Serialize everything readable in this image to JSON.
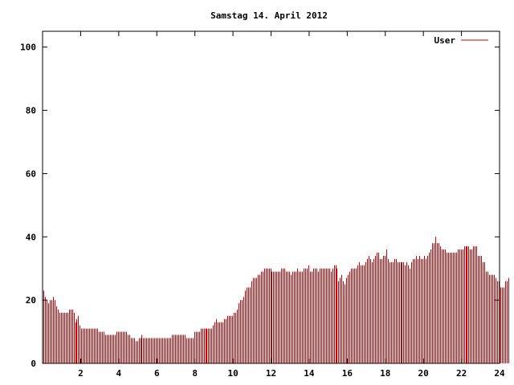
{
  "chart_data": {
    "type": "bar",
    "title": "Samstag 14. April 2012",
    "xlabel": "",
    "ylabel": "",
    "xlim": [
      0,
      24
    ],
    "ylim": [
      0,
      105
    ],
    "x_ticks": [
      "2",
      "4",
      "6",
      "8",
      "10",
      "12",
      "14",
      "16",
      "18",
      "20",
      "22",
      "24"
    ],
    "y_ticks": [
      "0",
      "20",
      "40",
      "60",
      "80",
      "100"
    ],
    "grid": false,
    "legend": {
      "position": "top-right"
    },
    "series": [
      {
        "name": "User",
        "color": "#cc0000",
        "interval_minutes": 5,
        "start_hour": 0,
        "values": [
          23,
          21,
          20,
          19,
          20,
          20,
          21,
          20,
          18,
          17,
          16,
          16,
          16,
          16,
          16,
          16,
          17,
          17,
          17,
          16,
          13,
          14,
          15,
          12,
          11,
          11,
          11,
          11,
          11,
          11,
          11,
          11,
          11,
          11,
          11,
          10,
          10,
          10,
          10,
          9,
          9,
          9,
          9,
          9,
          9,
          9,
          10,
          10,
          10,
          10,
          10,
          10,
          10,
          9,
          9,
          8,
          8,
          8,
          7,
          7,
          8,
          8,
          9,
          8,
          8,
          8,
          8,
          8,
          8,
          8,
          8,
          8,
          8,
          8,
          8,
          8,
          8,
          8,
          8,
          8,
          8,
          9,
          9,
          9,
          9,
          9,
          9,
          9,
          9,
          9,
          8,
          8,
          8,
          8,
          8,
          10,
          10,
          10,
          10,
          11,
          11,
          11,
          11,
          11,
          11,
          11,
          11,
          12,
          13,
          14,
          13,
          13,
          13,
          13,
          14,
          14,
          15,
          15,
          15,
          15,
          16,
          16,
          17,
          19,
          20,
          20,
          21,
          23,
          24,
          24,
          24,
          26,
          27,
          27,
          27,
          28,
          28,
          29,
          29,
          30,
          30,
          30,
          30,
          30,
          29,
          29,
          29,
          29,
          29,
          29,
          30,
          30,
          30,
          29,
          29,
          29,
          28,
          29,
          29,
          29,
          30,
          29,
          29,
          29,
          30,
          30,
          30,
          31,
          29,
          29,
          30,
          30,
          30,
          29,
          30,
          30,
          30,
          30,
          30,
          30,
          30,
          29,
          30,
          31,
          31,
          30,
          26,
          27,
          28,
          26,
          25,
          27,
          28,
          29,
          30,
          30,
          30,
          30,
          31,
          32,
          31,
          31,
          31,
          32,
          33,
          34,
          33,
          32,
          33,
          34,
          35,
          35,
          33,
          33,
          34,
          34,
          36,
          33,
          32,
          32,
          32,
          33,
          33,
          32,
          32,
          32,
          32,
          32,
          31,
          32,
          31,
          30,
          32,
          33,
          33,
          34,
          33,
          34,
          33,
          33,
          34,
          33,
          34,
          35,
          36,
          38,
          38,
          40,
          38,
          38,
          37,
          36,
          36,
          36,
          35,
          35,
          35,
          35,
          35,
          35,
          35,
          36,
          36,
          36,
          36,
          37,
          37,
          37,
          37,
          36,
          36,
          37,
          37,
          37,
          34,
          34,
          34,
          32,
          32,
          29,
          29,
          28,
          28,
          28,
          28,
          27,
          26,
          26,
          24,
          24,
          24,
          26,
          26,
          27
        ]
      }
    ]
  }
}
